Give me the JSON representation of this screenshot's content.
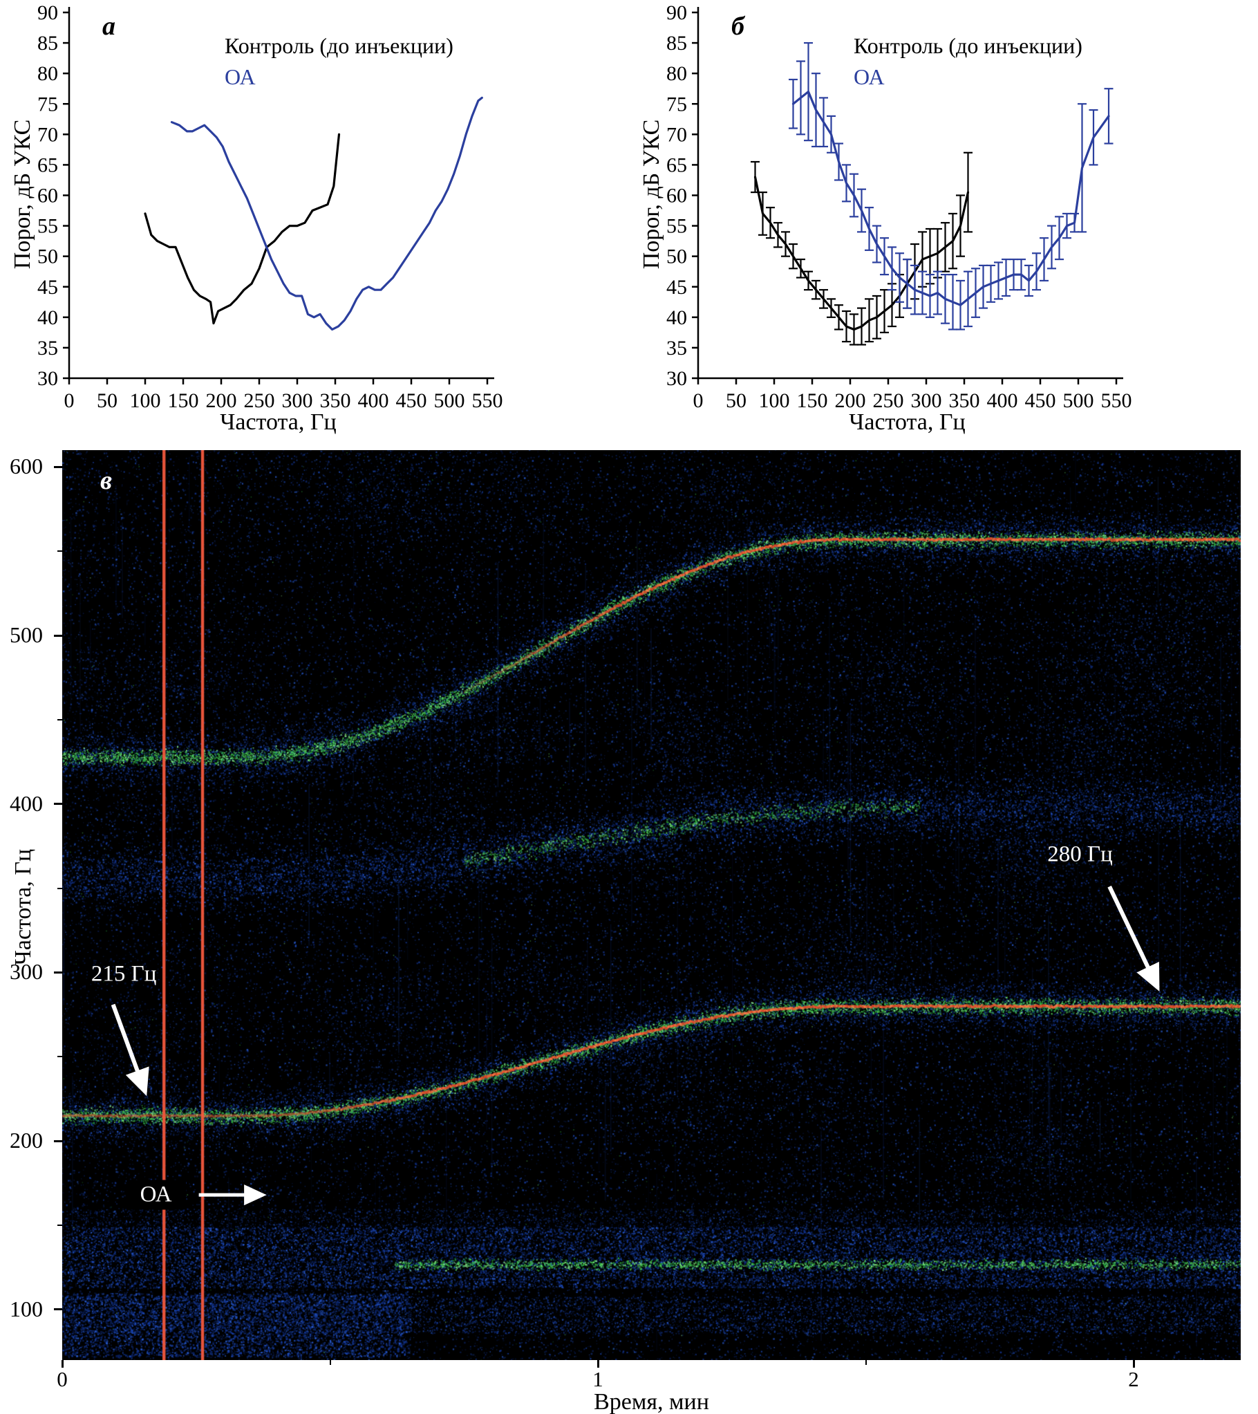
{
  "figure": {
    "panels": {
      "a": {
        "letter": "а",
        "legend": [
          {
            "label": "Контроль (до инъекции)",
            "color": "#000000"
          },
          {
            "label": "ОА",
            "color": "#2b3f9e"
          }
        ]
      },
      "b": {
        "letter": "б",
        "legend": [
          {
            "label": "Контроль (до инъекции)",
            "color": "#000000"
          },
          {
            "label": "ОА",
            "color": "#2b3f9e"
          }
        ]
      },
      "c": {
        "letter": "в"
      }
    }
  },
  "chart_data": [
    {
      "type": "line",
      "panel": "а",
      "xlabel": "Частота, Гц",
      "ylabel": "Порог, дБ УКС",
      "xlim": [
        0,
        550
      ],
      "ylim": [
        30,
        90
      ],
      "xticks": [
        0,
        50,
        100,
        150,
        200,
        250,
        300,
        350,
        400,
        450,
        500,
        550
      ],
      "yticks": [
        30,
        35,
        40,
        45,
        50,
        55,
        60,
        65,
        70,
        75,
        80,
        85,
        90
      ],
      "legend_position": "top-right",
      "grid": false,
      "series": [
        {
          "name": "Контроль (до инъекции)",
          "name_en": "control",
          "color": "#000000",
          "x": [
            100,
            108,
            116,
            124,
            132,
            140,
            148,
            156,
            164,
            172,
            180,
            186,
            190,
            196,
            204,
            212,
            220,
            230,
            240,
            250,
            260,
            270,
            280,
            290,
            300,
            310,
            320,
            330,
            340,
            348,
            355
          ],
          "y": [
            57,
            53.5,
            52.5,
            52,
            51.5,
            51.5,
            49,
            46.5,
            44.5,
            43.5,
            43,
            42.5,
            39,
            41,
            41.5,
            42,
            43,
            44.5,
            45.5,
            48,
            51.5,
            52.5,
            54,
            55,
            55,
            55.5,
            57.5,
            58,
            58.5,
            61.5,
            70
          ]
        },
        {
          "name": "ОА",
          "name_en": "oa",
          "color": "#2b3f9e",
          "x": [
            135,
            145,
            155,
            162,
            170,
            178,
            186,
            194,
            202,
            210,
            218,
            226,
            234,
            242,
            250,
            258,
            266,
            274,
            282,
            290,
            298,
            306,
            314,
            322,
            330,
            338,
            346,
            354,
            362,
            370,
            378,
            386,
            394,
            402,
            410,
            418,
            426,
            434,
            442,
            450,
            458,
            466,
            474,
            482,
            490,
            498,
            506,
            514,
            522,
            530,
            538,
            543
          ],
          "y": [
            72,
            71.5,
            70.5,
            70.5,
            71,
            71.5,
            70.5,
            69.5,
            68,
            65.5,
            63.5,
            61.5,
            59.5,
            57,
            54.5,
            52,
            49.5,
            47.5,
            45.5,
            44,
            43.5,
            43.5,
            40.5,
            40,
            40.5,
            39,
            38,
            38.5,
            39.5,
            41,
            43,
            44.5,
            45,
            44.5,
            44.5,
            45.5,
            46.5,
            48,
            49.5,
            51,
            52.5,
            54,
            55.5,
            57.5,
            59,
            61,
            63.5,
            66.5,
            70,
            73,
            75.5,
            76
          ]
        }
      ]
    },
    {
      "type": "line",
      "panel": "б",
      "xlabel": "Частота, Гц",
      "ylabel": "Порог, дБ УКС",
      "xlim": [
        0,
        550
      ],
      "ylim": [
        30,
        90
      ],
      "xticks": [
        0,
        50,
        100,
        150,
        200,
        250,
        300,
        350,
        400,
        450,
        500,
        550
      ],
      "yticks": [
        30,
        35,
        40,
        45,
        50,
        55,
        60,
        65,
        70,
        75,
        80,
        85,
        90
      ],
      "legend_position": "top-right",
      "grid": false,
      "error_bars": true,
      "series": [
        {
          "name": "Контроль (до инъекции)",
          "name_en": "control",
          "color": "#000000",
          "x": [
            75,
            85,
            95,
            105,
            115,
            125,
            135,
            145,
            155,
            165,
            175,
            185,
            195,
            205,
            215,
            225,
            235,
            245,
            255,
            265,
            275,
            285,
            295,
            305,
            315,
            325,
            335,
            345,
            355
          ],
          "y": [
            63,
            57,
            55.5,
            53.5,
            52,
            50,
            48,
            46,
            44.5,
            43,
            41.5,
            40,
            38.5,
            38,
            38.5,
            39.5,
            40,
            41,
            42,
            43.5,
            45.5,
            47.5,
            49.5,
            50,
            50.5,
            51.5,
            52.5,
            55,
            60.5
          ],
          "err": [
            2.5,
            3.5,
            2.5,
            2,
            2,
            2,
            1.5,
            1.5,
            1.5,
            1.5,
            1.5,
            2,
            2.5,
            2.5,
            3,
            3.5,
            3.5,
            3.5,
            3.5,
            3.5,
            4,
            4.5,
            4.5,
            4.5,
            4,
            4,
            4.5,
            5,
            6.5
          ]
        },
        {
          "name": "ОА",
          "name_en": "oa",
          "color": "#2b3f9e",
          "x": [
            125,
            135,
            145,
            155,
            165,
            175,
            185,
            195,
            205,
            215,
            225,
            235,
            245,
            255,
            265,
            275,
            285,
            295,
            305,
            315,
            325,
            335,
            345,
            355,
            365,
            375,
            385,
            395,
            405,
            415,
            425,
            435,
            445,
            455,
            465,
            475,
            485,
            495,
            505,
            520,
            540
          ],
          "y": [
            75,
            76,
            77,
            74,
            72,
            70,
            65.5,
            62,
            60,
            57.5,
            54.5,
            52,
            50,
            48,
            46.5,
            45.5,
            44.5,
            44,
            43.5,
            44,
            43,
            42.5,
            42,
            43,
            44,
            45,
            45.5,
            46,
            46.5,
            47,
            47,
            46,
            47.5,
            49.5,
            51.5,
            53,
            55,
            55.5,
            64.5,
            69.5,
            73
          ],
          "err": [
            4,
            6,
            8,
            6,
            4,
            3,
            3,
            3,
            3.5,
            3.5,
            3.5,
            3,
            3,
            3.5,
            4,
            4,
            4,
            3.5,
            3.5,
            3.5,
            4,
            4.5,
            4,
            4.5,
            4,
            3.5,
            3,
            3,
            3,
            2.5,
            2.5,
            2.5,
            3,
            3.5,
            3.5,
            3.5,
            2,
            1.5,
            10.5,
            4.5,
            4.5
          ]
        }
      ]
    },
    {
      "type": "heatmap",
      "panel": "в",
      "subtype": "spectrogram",
      "xlabel": "Время, мин",
      "ylabel": "Частота, Гц",
      "xlim": [
        0,
        2.2
      ],
      "ylim": [
        70,
        610
      ],
      "xticks": [
        0,
        1,
        2
      ],
      "xticks_minor": [
        0.5,
        1.5
      ],
      "yticks": [
        100,
        200,
        300,
        400,
        500,
        600
      ],
      "yticks_minor": [
        150,
        250,
        350,
        450,
        550
      ],
      "background": "#000000",
      "injection_line_color": "#f2593d",
      "injection_lines_min": [
        0.19,
        0.262
      ],
      "traces": [
        {
          "name": "fundamental",
          "start_hz": 215,
          "end_hz": 280,
          "shift_start_min": 0.34,
          "shift_end_min": 1.45,
          "core_color": "#e8562e"
        },
        {
          "name": "second_harmonic",
          "start_hz": 428,
          "end_hz": 557,
          "shift_start_min": 0.34,
          "shift_end_min": 1.45,
          "core_color": "#e8562e"
        },
        {
          "name": "side_band",
          "start_hz": 356,
          "end_hz": 398,
          "shift_start_min": 0.34,
          "shift_end_min": 1.55,
          "core_color": null
        }
      ],
      "noise_bands_hz": [
        [
          113,
          149
        ],
        [
          86,
          108
        ],
        [
          148,
          160
        ]
      ],
      "annotations": [
        {
          "text": "215 Гц",
          "t": 0.115,
          "f": 299,
          "arrow": {
            "t1": 0.095,
            "f1": 281,
            "t2": 0.155,
            "f2": 229
          }
        },
        {
          "text": "280 Гц",
          "t": 1.9,
          "f": 370,
          "arrow": {
            "t1": 1.955,
            "f1": 351,
            "t2": 2.045,
            "f2": 291
          }
        },
        {
          "text": "ОА",
          "t": 0.175,
          "f": 168,
          "arrow": {
            "t1": 0.255,
            "f1": 168,
            "t2": 0.375,
            "f2": 168
          },
          "boxed": true
        }
      ]
    }
  ]
}
